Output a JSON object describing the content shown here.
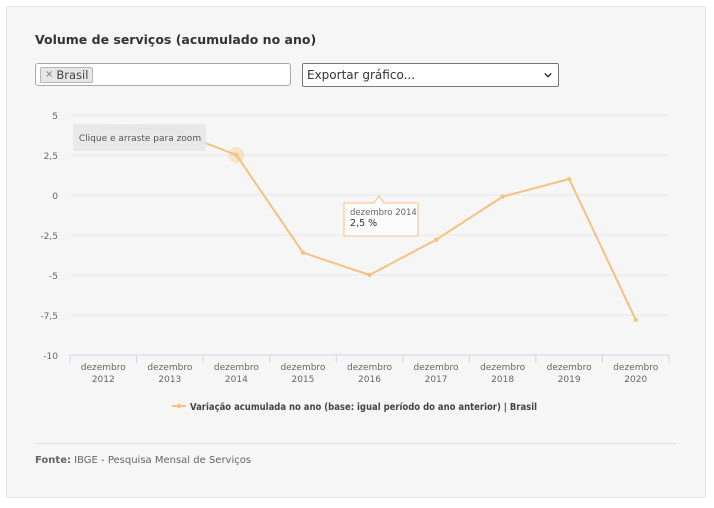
{
  "title": "Volume de serviços (acumulado no ano)",
  "filter": {
    "chip_label": "Brasil",
    "chip_remove": "×"
  },
  "export": {
    "label": "Exportar gráfico..."
  },
  "zoom_hint": "Clique e arraste para zoom",
  "tooltip": {
    "date": "dezembro 2014",
    "value": "2,5 %"
  },
  "source": {
    "label": "Fonte:",
    "text": "IBGE - Pesquisa Mensal de Serviços"
  },
  "colors": {
    "series": "#f5c27f",
    "grid": "#e6e6e6",
    "axis": "#ccd6eb"
  },
  "chart_data": {
    "type": "line",
    "title": "",
    "xlabel": "",
    "ylabel": "",
    "ylim": [
      -10,
      5
    ],
    "yticks": [
      5,
      2.5,
      0,
      -2.5,
      -5,
      -7.5,
      -10
    ],
    "ytick_labels": [
      "5",
      "2,5",
      "0",
      "-2,5",
      "-5",
      "-7,5",
      "-10"
    ],
    "categories": [
      [
        "dezembro",
        "2012"
      ],
      [
        "dezembro",
        "2013"
      ],
      [
        "dezembro",
        "2014"
      ],
      [
        "dezembro",
        "2015"
      ],
      [
        "dezembro",
        "2016"
      ],
      [
        "dezembro",
        "2017"
      ],
      [
        "dezembro",
        "2018"
      ],
      [
        "dezembro",
        "2019"
      ],
      [
        "dezembro",
        "2020"
      ]
    ],
    "series": [
      {
        "name": "Variação acumulada no ano (base: igual período do ano anterior) | Brasil",
        "values": [
          4.2,
          4.1,
          2.5,
          -3.6,
          -5.0,
          -2.8,
          -0.1,
          1.0,
          -7.8
        ]
      }
    ],
    "grid": true,
    "legend": "bottom-center",
    "highlighted_index": 2
  }
}
